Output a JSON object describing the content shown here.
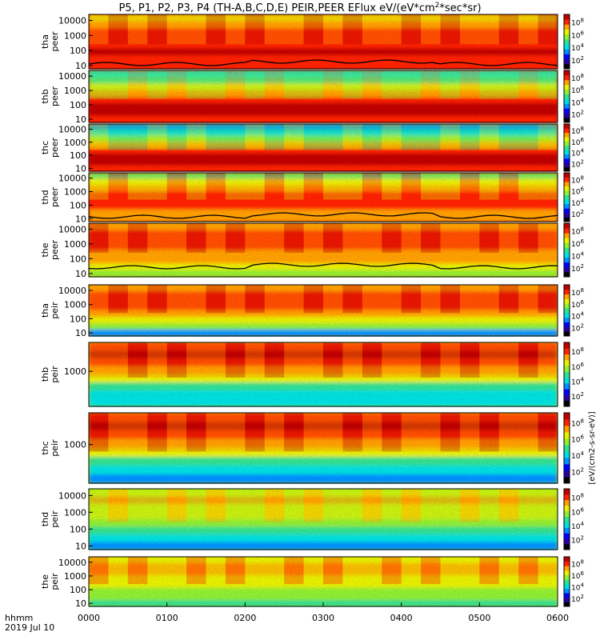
{
  "title": "P5, P1, P2, P3, P4 (TH-A,B,C,D,E) PEIR,PEER EFlux eV/(eV*cm",
  "title_sup": "2",
  "title_tail": "*sec*sr)",
  "xaxis": {
    "left_label_1": "hhmm",
    "left_label_2": "2019 Jul 10",
    "ticks": [
      "0000",
      "0100",
      "0200",
      "0300",
      "0400",
      "0500",
      "0600"
    ]
  },
  "colorbar": {
    "scale": "log",
    "units_label": "[eV/(cm2-s-sr-eV)]",
    "tick_base": "10",
    "tick_exponents": [
      "2",
      "4",
      "6",
      "8"
    ],
    "colors": [
      "#000000",
      "#2a00a0",
      "#0000ff",
      "#0090ff",
      "#00e0e0",
      "#30e090",
      "#90ee30",
      "#e8f000",
      "#ffa000",
      "#ff2000",
      "#c00000"
    ]
  },
  "chart_data": [
    {
      "type": "heatmap",
      "probe": "tha",
      "species": "peer",
      "ylabel": [
        "tha",
        "peer"
      ],
      "yscale": "log",
      "yticks": [
        "10",
        "100",
        "1000",
        "10000"
      ],
      "ytick_values": [
        10,
        100,
        1000,
        10000
      ],
      "ylim": [
        6,
        25000
      ],
      "xlim": [
        0,
        360
      ],
      "low_energy_line": true
    },
    {
      "type": "heatmap",
      "probe": "thb",
      "species": "peer",
      "ylabel": [
        "thb",
        "peer"
      ],
      "yscale": "log",
      "yticks": [
        "10",
        "100",
        "1000",
        "10000"
      ],
      "ytick_values": [
        10,
        100,
        1000,
        10000
      ],
      "ylim": [
        6,
        25000
      ],
      "xlim": [
        0,
        360
      ],
      "low_energy_line": false
    },
    {
      "type": "heatmap",
      "probe": "thc",
      "species": "peer",
      "ylabel": [
        "thc",
        "peer"
      ],
      "yscale": "log",
      "yticks": [
        "10",
        "100",
        "1000",
        "10000"
      ],
      "ytick_values": [
        10,
        100,
        1000,
        10000
      ],
      "ylim": [
        6,
        25000
      ],
      "xlim": [
        0,
        360
      ],
      "low_energy_line": false
    },
    {
      "type": "heatmap",
      "probe": "thd",
      "species": "peer",
      "ylabel": [
        "thd",
        "peer"
      ],
      "yscale": "log",
      "yticks": [
        "10",
        "100",
        "1000",
        "10000"
      ],
      "ytick_values": [
        10,
        100,
        1000,
        10000
      ],
      "ylim": [
        6,
        25000
      ],
      "xlim": [
        0,
        360
      ],
      "low_energy_line": true
    },
    {
      "type": "heatmap",
      "probe": "the",
      "species": "peer",
      "ylabel": [
        "the",
        "peer"
      ],
      "yscale": "log",
      "yticks": [
        "10",
        "100",
        "1000",
        "10000"
      ],
      "ytick_values": [
        10,
        100,
        1000,
        10000
      ],
      "ylim": [
        6,
        25000
      ],
      "xlim": [
        0,
        360
      ],
      "low_energy_line": true
    },
    {
      "type": "heatmap",
      "probe": "tha",
      "species": "peir",
      "ylabel": [
        "tha",
        "peir"
      ],
      "yscale": "log",
      "yticks": [
        "10",
        "100",
        "1000",
        "10000"
      ],
      "ytick_values": [
        10,
        100,
        1000,
        10000
      ],
      "ylim": [
        6,
        25000
      ],
      "xlim": [
        0,
        360
      ],
      "low_energy_line": false
    },
    {
      "type": "heatmap",
      "probe": "thb",
      "species": "peir",
      "ylabel": [
        "thb",
        "peir"
      ],
      "yscale": "log",
      "yticks": [
        "1000"
      ],
      "ytick_values": [
        1000
      ],
      "ylim": [
        20,
        25000
      ],
      "xlim": [
        0,
        360
      ],
      "low_energy_line": false
    },
    {
      "type": "heatmap",
      "probe": "thc",
      "species": "peir",
      "ylabel": [
        "thc",
        "peir"
      ],
      "yscale": "log",
      "yticks": [
        "1000"
      ],
      "ytick_values": [
        1000
      ],
      "ylim": [
        20,
        25000
      ],
      "xlim": [
        0,
        360
      ],
      "low_energy_line": false
    },
    {
      "type": "heatmap",
      "probe": "thd",
      "species": "peir",
      "ylabel": [
        "thd",
        "peir"
      ],
      "yscale": "log",
      "yticks": [
        "10",
        "100",
        "1000",
        "10000"
      ],
      "ytick_values": [
        10,
        100,
        1000,
        10000
      ],
      "ylim": [
        6,
        25000
      ],
      "xlim": [
        0,
        360
      ],
      "low_energy_line": false
    },
    {
      "type": "heatmap",
      "probe": "the",
      "species": "peir",
      "ylabel": [
        "the",
        "peir"
      ],
      "yscale": "log",
      "yticks": [
        "10",
        "100",
        "1000",
        "10000"
      ],
      "ytick_values": [
        10,
        100,
        1000,
        10000
      ],
      "ylim": [
        6,
        25000
      ],
      "xlim": [
        0,
        360
      ],
      "low_energy_line": false
    }
  ]
}
